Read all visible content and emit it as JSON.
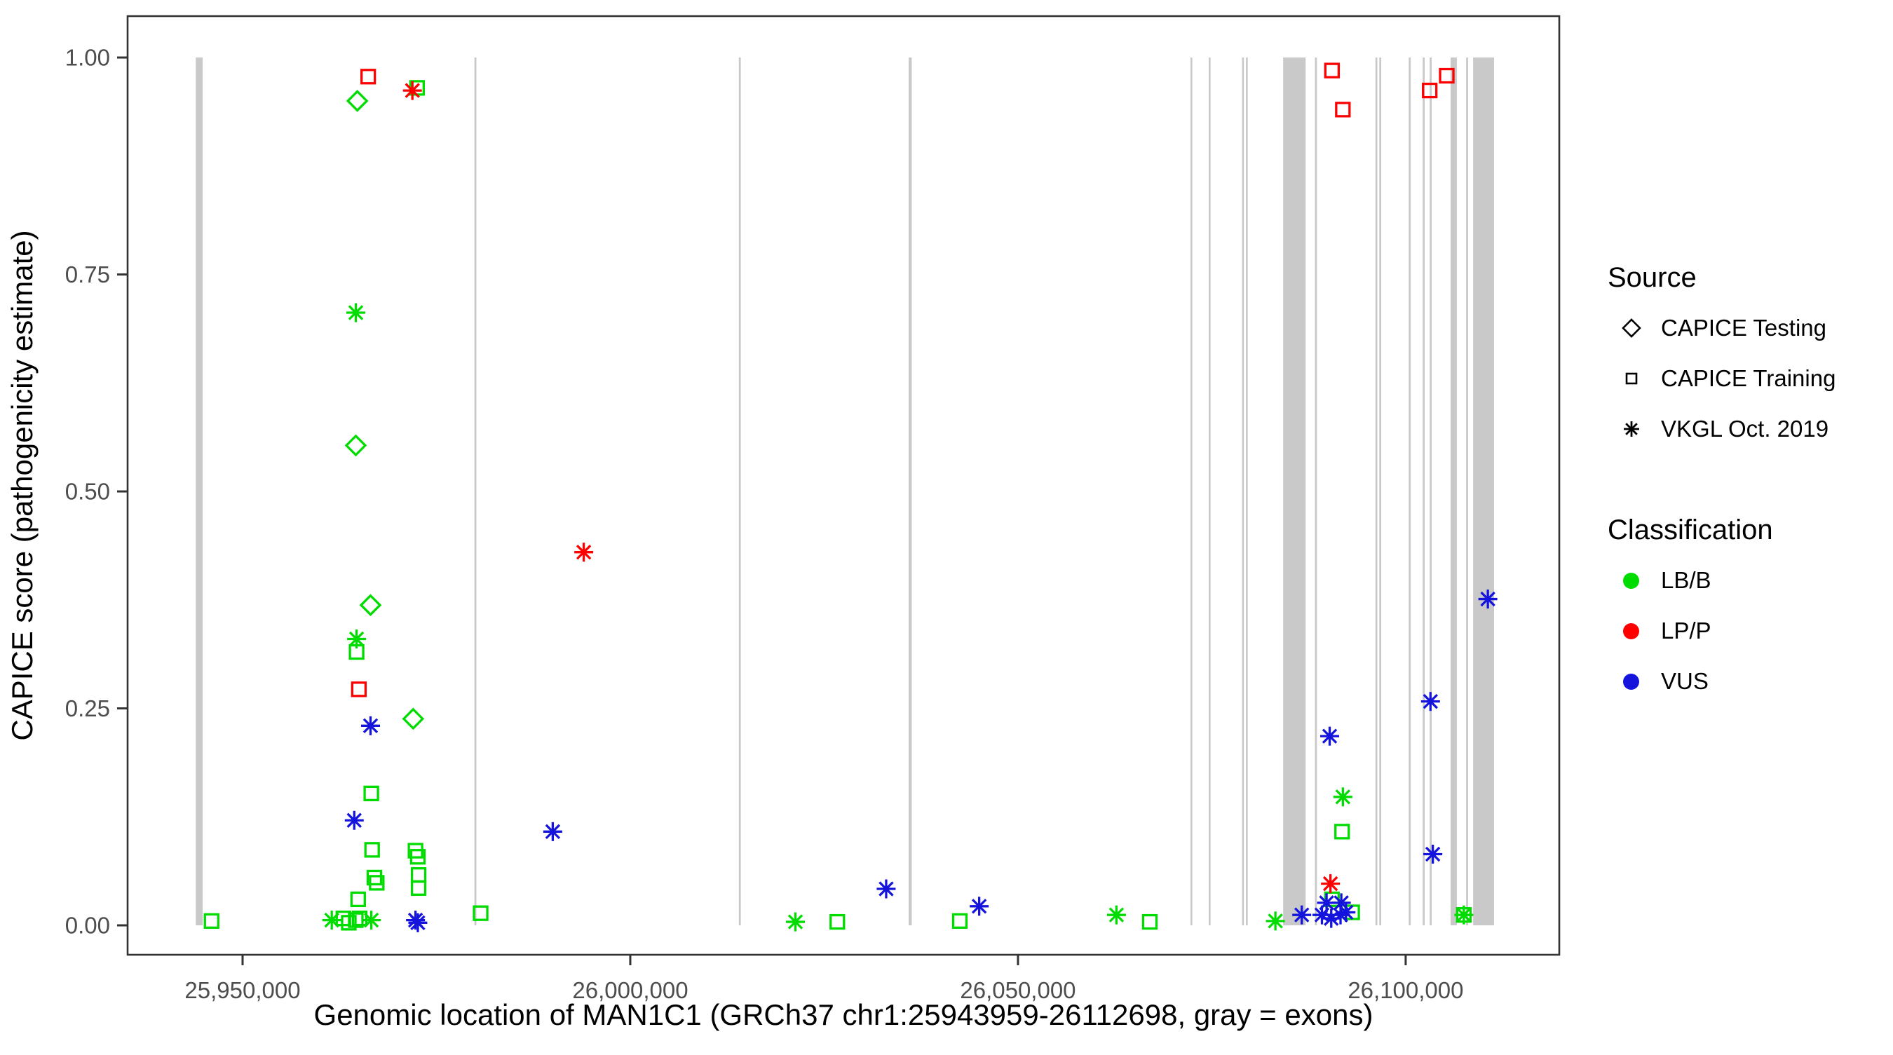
{
  "chart_data": {
    "type": "scatter",
    "xlabel": "Genomic location of MAN1C1 (GRCh37 chr1:25943959-26112698, gray = exons)",
    "ylabel": "CAPICE score (pathogenicity estimate)",
    "xlim": [
      25935170,
      26119810
    ],
    "ylim": [
      -0.0339,
      1.0477
    ],
    "x_ticks": [
      {
        "value": 25950000,
        "label": "25,950,000"
      },
      {
        "value": 26000000,
        "label": "26,000,000"
      },
      {
        "value": 26050000,
        "label": "26,050,000"
      },
      {
        "value": 26100000,
        "label": "26,100,000"
      }
    ],
    "y_ticks": [
      {
        "value": 0.0,
        "label": "0.00"
      },
      {
        "value": 0.25,
        "label": "0.25"
      },
      {
        "value": 0.5,
        "label": "0.50"
      },
      {
        "value": 0.75,
        "label": "0.75"
      },
      {
        "value": 1.0,
        "label": "1.00"
      }
    ],
    "grid": false,
    "exon_color": "#c9c9c9",
    "exons": [
      [
        25943959,
        25944850
      ],
      [
        25979900,
        25980150
      ],
      [
        26014000,
        26014250
      ],
      [
        26035900,
        26036300
      ],
      [
        26072250,
        26072480
      ],
      [
        26074600,
        26074830
      ],
      [
        26078900,
        26079130
      ],
      [
        26079400,
        26079630
      ],
      [
        26084200,
        26087100
      ],
      [
        26088300,
        26088550
      ],
      [
        26096100,
        26096350
      ],
      [
        26096600,
        26096850
      ],
      [
        26100400,
        26100650
      ],
      [
        26102200,
        26102450
      ],
      [
        26103100,
        26103350
      ],
      [
        26105800,
        26106600
      ],
      [
        26107800,
        26108050
      ],
      [
        26108700,
        26111400
      ]
    ],
    "class_colors": {
      "LB/B": "#00dc00",
      "LP/P": "#ff0000",
      "VUS": "#1414dc"
    },
    "source_shapes": {
      "CAPICE Testing": "diamond",
      "CAPICE Training": "square",
      "VKGL Oct. 2019": "asterisk"
    },
    "points": [
      {
        "x": 25964800,
        "y": 0.95,
        "source": "CAPICE Testing",
        "class": "LB/B"
      },
      {
        "x": 25964600,
        "y": 0.553,
        "source": "CAPICE Testing",
        "class": "LB/B"
      },
      {
        "x": 25966500,
        "y": 0.369,
        "source": "CAPICE Testing",
        "class": "LB/B"
      },
      {
        "x": 25972000,
        "y": 0.238,
        "source": "CAPICE Testing",
        "class": "LB/B"
      },
      {
        "x": 25972500,
        "y": 0.965,
        "source": "CAPICE Training",
        "class": "LB/B"
      },
      {
        "x": 25964700,
        "y": 0.315,
        "source": "CAPICE Training",
        "class": "LB/B"
      },
      {
        "x": 25966600,
        "y": 0.152,
        "source": "CAPICE Training",
        "class": "LB/B"
      },
      {
        "x": 25966700,
        "y": 0.087,
        "source": "CAPICE Training",
        "class": "LB/B"
      },
      {
        "x": 25972300,
        "y": 0.086,
        "source": "CAPICE Training",
        "class": "LB/B"
      },
      {
        "x": 25972600,
        "y": 0.079,
        "source": "CAPICE Training",
        "class": "LB/B"
      },
      {
        "x": 25972700,
        "y": 0.058,
        "source": "CAPICE Training",
        "class": "LB/B"
      },
      {
        "x": 25972700,
        "y": 0.043,
        "source": "CAPICE Training",
        "class": "LB/B"
      },
      {
        "x": 25967000,
        "y": 0.055,
        "source": "CAPICE Training",
        "class": "LB/B"
      },
      {
        "x": 25967300,
        "y": 0.049,
        "source": "CAPICE Training",
        "class": "LB/B"
      },
      {
        "x": 25964900,
        "y": 0.03,
        "source": "CAPICE Training",
        "class": "LB/B"
      },
      {
        "x": 25946000,
        "y": 0.005,
        "source": "CAPICE Training",
        "class": "LB/B"
      },
      {
        "x": 25963000,
        "y": 0.008,
        "source": "CAPICE Training",
        "class": "LB/B"
      },
      {
        "x": 25963700,
        "y": 0.003,
        "source": "CAPICE Training",
        "class": "LB/B"
      },
      {
        "x": 25964600,
        "y": 0.006,
        "source": "CAPICE Training",
        "class": "LB/B"
      },
      {
        "x": 25965100,
        "y": 0.008,
        "source": "CAPICE Training",
        "class": "LB/B"
      },
      {
        "x": 25980700,
        "y": 0.014,
        "source": "CAPICE Training",
        "class": "LB/B"
      },
      {
        "x": 26026700,
        "y": 0.004,
        "source": "CAPICE Training",
        "class": "LB/B"
      },
      {
        "x": 26042500,
        "y": 0.005,
        "source": "CAPICE Training",
        "class": "LB/B"
      },
      {
        "x": 26067000,
        "y": 0.004,
        "source": "CAPICE Training",
        "class": "LB/B"
      },
      {
        "x": 26090500,
        "y": 0.03,
        "source": "CAPICE Training",
        "class": "LB/B"
      },
      {
        "x": 26093100,
        "y": 0.015,
        "source": "CAPICE Training",
        "class": "LB/B"
      },
      {
        "x": 26091800,
        "y": 0.108,
        "source": "CAPICE Training",
        "class": "LB/B"
      },
      {
        "x": 26107500,
        "y": 0.012,
        "source": "CAPICE Training",
        "class": "LB/B"
      },
      {
        "x": 25964600,
        "y": 0.706,
        "source": "VKGL Oct. 2019",
        "class": "LB/B"
      },
      {
        "x": 25964700,
        "y": 0.33,
        "source": "VKGL Oct. 2019",
        "class": "LB/B"
      },
      {
        "x": 25961500,
        "y": 0.006,
        "source": "VKGL Oct. 2019",
        "class": "LB/B"
      },
      {
        "x": 25966600,
        "y": 0.006,
        "source": "VKGL Oct. 2019",
        "class": "LB/B"
      },
      {
        "x": 26021300,
        "y": 0.004,
        "source": "VKGL Oct. 2019",
        "class": "LB/B"
      },
      {
        "x": 26062700,
        "y": 0.012,
        "source": "VKGL Oct. 2019",
        "class": "LB/B"
      },
      {
        "x": 26083200,
        "y": 0.005,
        "source": "VKGL Oct. 2019",
        "class": "LB/B"
      },
      {
        "x": 26091900,
        "y": 0.148,
        "source": "VKGL Oct. 2019",
        "class": "LB/B"
      },
      {
        "x": 26107500,
        "y": 0.012,
        "source": "VKGL Oct. 2019",
        "class": "LB/B"
      },
      {
        "x": 25966200,
        "y": 0.978,
        "source": "CAPICE Training",
        "class": "LP/P"
      },
      {
        "x": 25965000,
        "y": 0.272,
        "source": "CAPICE Training",
        "class": "LP/P"
      },
      {
        "x": 26090500,
        "y": 0.985,
        "source": "CAPICE Training",
        "class": "LP/P"
      },
      {
        "x": 26091900,
        "y": 0.94,
        "source": "CAPICE Training",
        "class": "LP/P"
      },
      {
        "x": 26103100,
        "y": 0.962,
        "source": "CAPICE Training",
        "class": "LP/P"
      },
      {
        "x": 26105300,
        "y": 0.979,
        "source": "CAPICE Training",
        "class": "LP/P"
      },
      {
        "x": 25971900,
        "y": 0.962,
        "source": "VKGL Oct. 2019",
        "class": "LP/P"
      },
      {
        "x": 25994000,
        "y": 0.43,
        "source": "VKGL Oct. 2019",
        "class": "LP/P"
      },
      {
        "x": 26090300,
        "y": 0.048,
        "source": "VKGL Oct. 2019",
        "class": "LP/P"
      },
      {
        "x": 25966500,
        "y": 0.23,
        "source": "VKGL Oct. 2019",
        "class": "VUS"
      },
      {
        "x": 25964400,
        "y": 0.121,
        "source": "VKGL Oct. 2019",
        "class": "VUS"
      },
      {
        "x": 25972300,
        "y": 0.006,
        "source": "VKGL Oct. 2019",
        "class": "VUS"
      },
      {
        "x": 25972600,
        "y": 0.003,
        "source": "VKGL Oct. 2019",
        "class": "VUS"
      },
      {
        "x": 25990000,
        "y": 0.108,
        "source": "VKGL Oct. 2019",
        "class": "VUS"
      },
      {
        "x": 26033000,
        "y": 0.042,
        "source": "VKGL Oct. 2019",
        "class": "VUS"
      },
      {
        "x": 26045000,
        "y": 0.022,
        "source": "VKGL Oct. 2019",
        "class": "VUS"
      },
      {
        "x": 26086600,
        "y": 0.012,
        "source": "VKGL Oct. 2019",
        "class": "VUS"
      },
      {
        "x": 26090200,
        "y": 0.218,
        "source": "VKGL Oct. 2019",
        "class": "VUS"
      },
      {
        "x": 26103200,
        "y": 0.258,
        "source": "VKGL Oct. 2019",
        "class": "VUS"
      },
      {
        "x": 26103500,
        "y": 0.082,
        "source": "VKGL Oct. 2019",
        "class": "VUS"
      },
      {
        "x": 26110600,
        "y": 0.376,
        "source": "VKGL Oct. 2019",
        "class": "VUS"
      },
      {
        "x": 26089800,
        "y": 0.026,
        "source": "VKGL Oct. 2019",
        "class": "VUS"
      },
      {
        "x": 26091700,
        "y": 0.026,
        "source": "VKGL Oct. 2019",
        "class": "VUS"
      },
      {
        "x": 26089200,
        "y": 0.012,
        "source": "VKGL Oct. 2019",
        "class": "VUS"
      },
      {
        "x": 26090400,
        "y": 0.008,
        "source": "VKGL Oct. 2019",
        "class": "VUS"
      },
      {
        "x": 26091600,
        "y": 0.012,
        "source": "VKGL Oct. 2019",
        "class": "VUS"
      },
      {
        "x": 26092300,
        "y": 0.015,
        "source": "VKGL Oct. 2019",
        "class": "VUS"
      }
    ]
  },
  "legend": {
    "source": {
      "title": "Source",
      "items": [
        {
          "label": "CAPICE Testing",
          "shape": "diamond"
        },
        {
          "label": "CAPICE Training",
          "shape": "square"
        },
        {
          "label": "VKGL Oct. 2019",
          "shape": "asterisk"
        }
      ]
    },
    "classification": {
      "title": "Classification",
      "items": [
        {
          "label": "LB/B",
          "color": "#00dc00"
        },
        {
          "label": "LP/P",
          "color": "#ff0000"
        },
        {
          "label": "VUS",
          "color": "#1414dc"
        }
      ]
    }
  },
  "style": {
    "tick_label_color": "#4d4d4d",
    "axis_title_color": "#000000",
    "panel_border_color": "#333333",
    "background": "#ffffff"
  }
}
